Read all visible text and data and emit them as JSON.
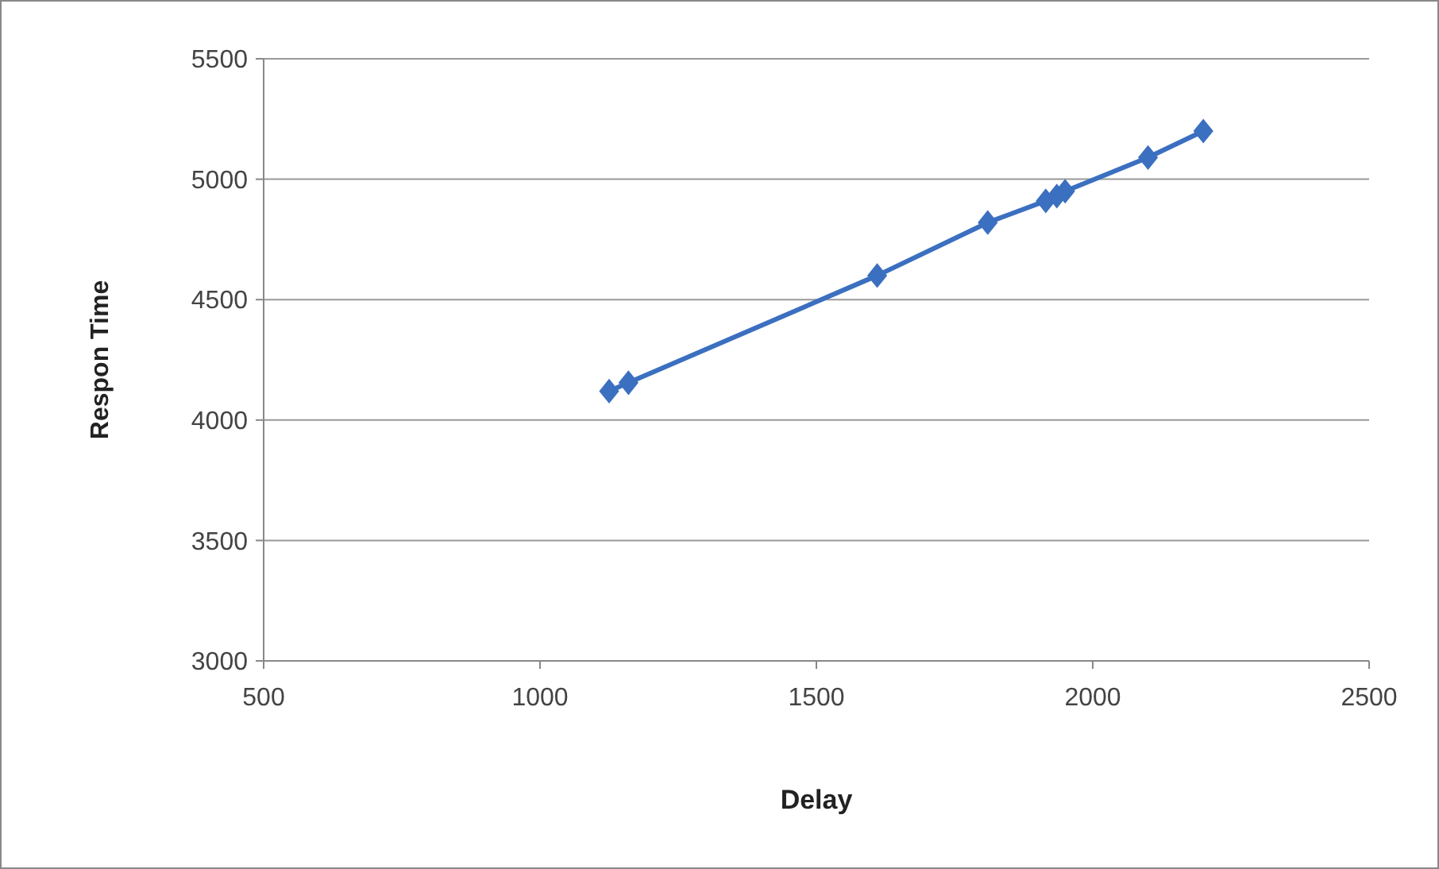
{
  "chart_data": {
    "type": "line",
    "xlabel": "Delay",
    "ylabel": "Respon Time",
    "xlim": [
      500,
      2500
    ],
    "xticks": [
      500,
      1000,
      1500,
      2000,
      2500
    ],
    "ylim": [
      3000,
      5500
    ],
    "yticks": [
      3000,
      3500,
      4000,
      4500,
      5000,
      5500
    ],
    "grid": "y",
    "marker": "diamond",
    "line_style": "solid",
    "series": [
      {
        "color": "#3b6fc0",
        "x": [
          1125,
          1160,
          1610,
          1810,
          1915,
          1935,
          1950,
          2100,
          2200
        ],
        "values": [
          4120,
          4155,
          4600,
          4820,
          4910,
          4930,
          4950,
          5090,
          5200
        ]
      }
    ]
  }
}
